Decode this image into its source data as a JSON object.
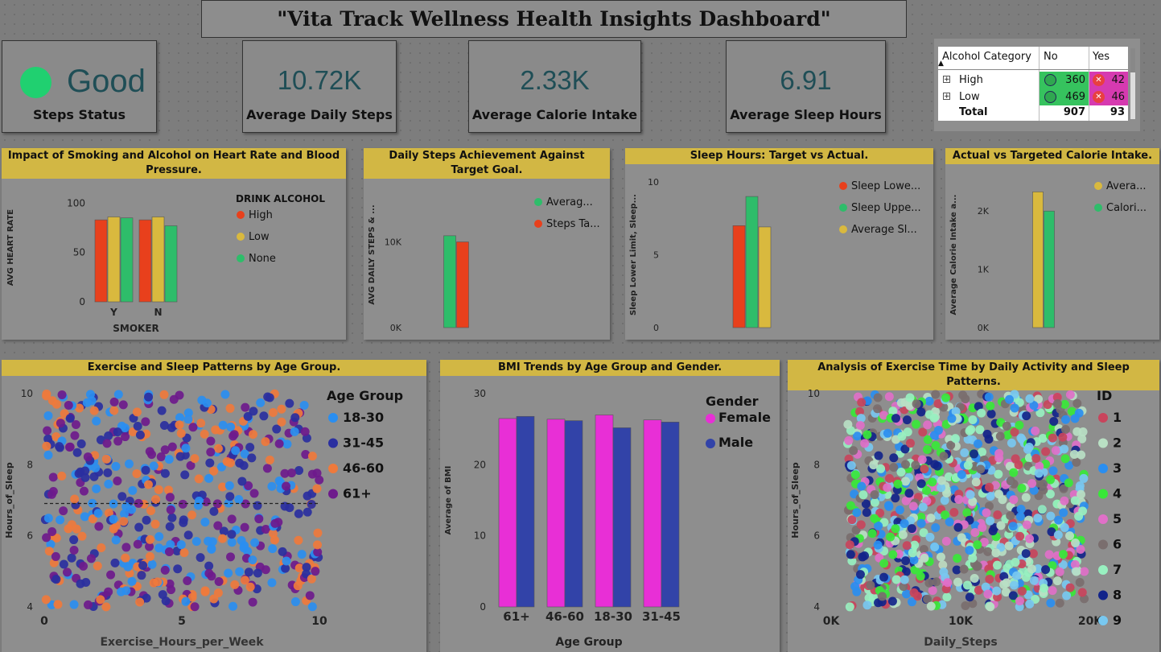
{
  "title": "\"Vita Track  Wellness Health Insights Dashboard\"",
  "kpis": {
    "steps_status": {
      "value": "Good",
      "label": "Steps Status",
      "color": "#20d070"
    },
    "avg_steps": {
      "value": "10.72K",
      "label": "Average Daily Steps"
    },
    "avg_calorie": {
      "value": "2.33K",
      "label": "Average Calorie Intake"
    },
    "avg_sleep": {
      "value": "6.91",
      "label": "Average Sleep Hours"
    }
  },
  "matrix": {
    "headers": [
      "Alcohol Category",
      "No",
      "Yes"
    ],
    "rows": [
      {
        "label": "High",
        "no": "360",
        "yes": "42"
      },
      {
        "label": "Low",
        "no": "469",
        "yes": "46"
      },
      {
        "label": "Total",
        "no": "907",
        "yes": "93"
      }
    ]
  },
  "colors": {
    "red": "#e8401c",
    "yellow": "#d9b93e",
    "green": "#2ebd6a",
    "magenta": "#e82fd6",
    "blue": "#3243a8",
    "header": "#d2b744"
  },
  "chart_data": [
    {
      "type": "bar",
      "title": "Impact of Smoking and Alcohol on Heart Rate and Blood Pressure.",
      "xlabel": "SMOKER",
      "ylabel": "AVG HEART RATE",
      "legend_title": "DRINK ALCOHOL",
      "categories": [
        "Y",
        "N"
      ],
      "series": [
        {
          "name": "High",
          "values": [
            83,
            83
          ]
        },
        {
          "name": "Low",
          "values": [
            86,
            86
          ]
        },
        {
          "name": "None",
          "values": [
            85,
            77
          ]
        }
      ],
      "ylim": [
        0,
        110
      ],
      "yticks": [
        "0",
        "50",
        "100"
      ],
      "ytick_values": [
        0,
        50,
        100
      ]
    },
    {
      "type": "bar",
      "title": "Daily Steps Achievement Against Target Goal.",
      "ylabel": "AVG DAILY STEPS & ...",
      "categories": [
        ""
      ],
      "series": [
        {
          "name": "Averag...",
          "values": [
            10720
          ]
        },
        {
          "name": "Steps Ta...",
          "values": [
            10000
          ]
        }
      ],
      "ylim": [
        0,
        17000
      ],
      "yticks": [
        "0K",
        "10K"
      ],
      "ytick_values": [
        0,
        10000
      ]
    },
    {
      "type": "bar",
      "title": "Sleep Hours: Target vs Actual.",
      "ylabel": "Sleep Lower Limit, Sleep...",
      "categories": [
        ""
      ],
      "series": [
        {
          "name": "Sleep Lowe...",
          "values": [
            7
          ]
        },
        {
          "name": "Sleep Uppe...",
          "values": [
            9
          ]
        },
        {
          "name": "Average Sl...",
          "values": [
            6.91
          ]
        }
      ],
      "ylim": [
        0,
        10
      ],
      "yticks": [
        "0",
        "5",
        "10"
      ],
      "ytick_values": [
        0,
        5,
        10
      ]
    },
    {
      "type": "bar",
      "title": "Actual vs Targeted Calorie Intake.",
      "ylabel": "Average Calorie Intake a...",
      "categories": [
        ""
      ],
      "series": [
        {
          "name": "Avera...",
          "values": [
            2330
          ]
        },
        {
          "name": "Calori...",
          "values": [
            2000
          ]
        }
      ],
      "ylim": [
        0,
        2500
      ],
      "yticks": [
        "0K",
        "1K",
        "2K"
      ],
      "ytick_values": [
        0,
        1000,
        2000
      ]
    },
    {
      "type": "scatter",
      "title": "Exercise and Sleep Patterns by Age Group.",
      "xlabel": "Exercise_Hours_per_Week",
      "ylabel": "Hours_of_Sleep",
      "legend_title": "Age Group",
      "series_names": [
        "18-30",
        "31-45",
        "46-60",
        "61+"
      ],
      "series_colors": [
        "#2a8ef0",
        "#2a2fa0",
        "#ef7a3c",
        "#6e1a8c"
      ],
      "xlim": [
        0,
        10
      ],
      "ylim": [
        4,
        10
      ],
      "xticks": [
        "0",
        "5",
        "10"
      ],
      "xtick_values": [
        0,
        5,
        10
      ],
      "yticks": [
        "4",
        "6",
        "8",
        "10"
      ],
      "ytick_values": [
        4,
        6,
        8,
        10
      ],
      "reference_line_y": 6.91,
      "points_per_series": 130
    },
    {
      "type": "bar",
      "title": "BMI Trends by Age Group and Gender.",
      "xlabel": "Age Group",
      "ylabel": "Average of BMI",
      "legend_title": "Gender",
      "categories": [
        "61+",
        "46-60",
        "18-30",
        "31-45"
      ],
      "series": [
        {
          "name": "Female",
          "values": [
            26.5,
            26.4,
            27.0,
            26.3
          ]
        },
        {
          "name": "Male",
          "values": [
            26.8,
            26.2,
            25.2,
            26.0
          ]
        }
      ],
      "ylim": [
        0,
        30
      ],
      "yticks": [
        "0",
        "10",
        "20",
        "30"
      ],
      "ytick_values": [
        0,
        10,
        20,
        30
      ]
    },
    {
      "type": "scatter",
      "title": "Analysis of Exercise Time by Daily Activity and Sleep Patterns.",
      "xlabel": "Daily_Steps",
      "ylabel": "Hours_of_Sleep",
      "legend_title": "ID",
      "series_names": [
        "1",
        "2",
        "3",
        "4",
        "5",
        "6",
        "7",
        "8",
        "9"
      ],
      "series_colors": [
        "#c8445c",
        "#b9e0c4",
        "#2a8ef0",
        "#38e838",
        "#e070c8",
        "#7a6e6e",
        "#98f0c0",
        "#12248a",
        "#78c8f0"
      ],
      "xlim": [
        0,
        20000
      ],
      "ylim": [
        4,
        10
      ],
      "xticks": [
        "0K",
        "10K",
        "20K"
      ],
      "xtick_values": [
        0,
        10000,
        20000
      ],
      "yticks": [
        "4",
        "6",
        "8",
        "10"
      ],
      "ytick_values": [
        4,
        6,
        8,
        10
      ],
      "points_per_series": 100
    }
  ]
}
